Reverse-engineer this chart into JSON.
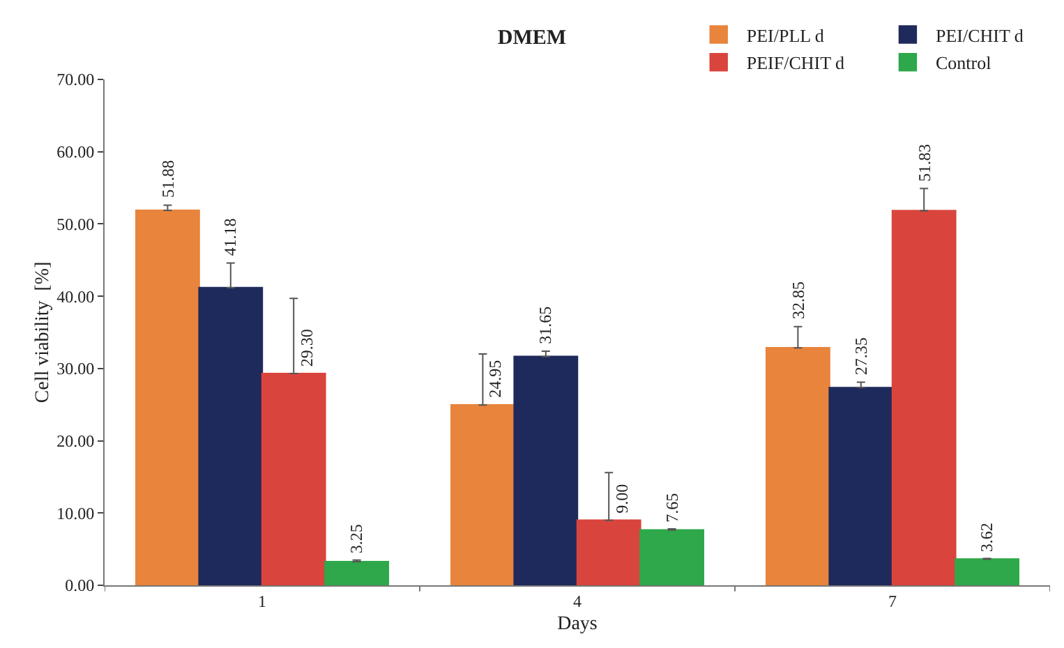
{
  "chart_data": {
    "type": "bar",
    "title": "DMEM",
    "xlabel": "Days",
    "ylabel": "Cell viability  [%]",
    "categories": [
      "1",
      "4",
      "7"
    ],
    "ylim": [
      0,
      70
    ],
    "yticks": [
      {
        "value": 0,
        "label": "0.00"
      },
      {
        "value": 10,
        "label": "10.00"
      },
      {
        "value": 20,
        "label": "20.00"
      },
      {
        "value": 30,
        "label": "30.00"
      },
      {
        "value": 40,
        "label": "40.00"
      },
      {
        "value": 50,
        "label": "50.00"
      },
      {
        "value": 60,
        "label": "60.00"
      },
      {
        "value": 70,
        "label": "70.00"
      }
    ],
    "grid": false,
    "legend": "top right",
    "series": [
      {
        "name": "PEI/PLL d",
        "color": "#e8843c",
        "values": [
          51.88,
          24.95,
          32.85
        ],
        "value_labels": [
          "51.88",
          "24.95",
          "32.85"
        ],
        "errors": [
          [
            51.88,
            52.6
          ],
          [
            24.95,
            32.0
          ],
          [
            32.85,
            35.8
          ]
        ]
      },
      {
        "name": "PEI/CHIT d",
        "color": "#1f2a5c",
        "values": [
          41.18,
          31.65,
          27.35
        ],
        "value_labels": [
          "41.18",
          "31.65",
          "27.35"
        ],
        "errors": [
          [
            41.18,
            44.6
          ],
          [
            31.65,
            32.4
          ],
          [
            27.35,
            28.1
          ]
        ]
      },
      {
        "name": "PEIF/CHIT d",
        "color": "#d9453c",
        "values": [
          29.3,
          9.0,
          51.83
        ],
        "value_labels": [
          "29.30",
          "9.00",
          "51.83"
        ],
        "errors": [
          [
            29.3,
            39.7
          ],
          [
            9.0,
            15.6
          ],
          [
            51.83,
            54.9
          ]
        ]
      },
      {
        "name": "Control",
        "color": "#2ea84a",
        "values": [
          3.25,
          7.65,
          3.62
        ],
        "value_labels": [
          "3.25",
          "7.65",
          "3.62"
        ],
        "errors": [
          [
            3.25,
            3.5
          ],
          [
            7.65,
            7.8
          ],
          [
            3.62,
            3.7
          ]
        ]
      }
    ]
  }
}
